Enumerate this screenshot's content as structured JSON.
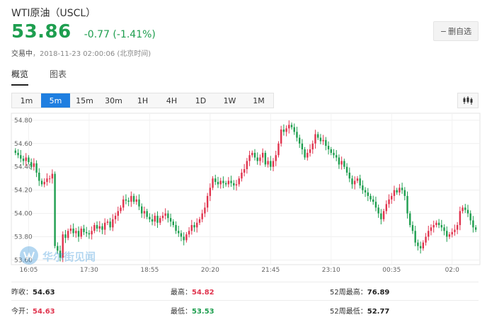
{
  "header": {
    "title": "WTI原油（USCL）",
    "price": "53.86",
    "change": "-0.77 (-1.41%)",
    "status_label": "交易中",
    "timestamp": "，2018-11-23 02:00:06 (北京时间)",
    "fav_button": "删自选",
    "up_color": "#e0344e",
    "down_color": "#1e9e4f"
  },
  "tabs": [
    {
      "label": "概览",
      "active": true
    },
    {
      "label": "图表",
      "active": false
    }
  ],
  "periods": [
    {
      "label": "1m",
      "active": false
    },
    {
      "label": "5m",
      "active": true
    },
    {
      "label": "15m",
      "active": false
    },
    {
      "label": "30m",
      "active": false
    },
    {
      "label": "1H",
      "active": false
    },
    {
      "label": "4H",
      "active": false
    },
    {
      "label": "1D",
      "active": false
    },
    {
      "label": "1W",
      "active": false
    },
    {
      "label": "1M",
      "active": false
    }
  ],
  "chart_tool_icon": "candlestick-icon",
  "watermark": "华尔街见闻",
  "chart_data": {
    "type": "candlestick",
    "y_ticks": [
      "54.80",
      "54.60",
      "54.40",
      "54.20",
      "54.00",
      "53.80",
      "53.60"
    ],
    "ylim": [
      53.56,
      54.86
    ],
    "x_ticks": [
      "16:05",
      "17:30",
      "18:55",
      "20:20",
      "21:45",
      "23:10",
      "00:35",
      "02:0"
    ],
    "x_tick_index": [
      5,
      28,
      51,
      74,
      97,
      120,
      143,
      166
    ],
    "grid": true,
    "closes": [
      54.52,
      54.5,
      54.47,
      54.45,
      54.48,
      54.44,
      54.4,
      54.43,
      54.35,
      54.28,
      54.25,
      54.27,
      54.3,
      54.3,
      54.34,
      53.72,
      53.68,
      53.62,
      53.82,
      53.79,
      53.85,
      53.87,
      53.83,
      53.85,
      53.8,
      53.87,
      53.84,
      53.83,
      53.82,
      53.85,
      53.9,
      53.87,
      53.89,
      53.86,
      53.92,
      53.93,
      53.88,
      53.95,
      53.98,
      54.02,
      54.05,
      54.12,
      54.11,
      54.1,
      54.15,
      54.1,
      54.12,
      54.06,
      54.0,
      54.02,
      53.97,
      53.95,
      53.93,
      53.98,
      53.92,
      53.96,
      53.98,
      54.0,
      53.96,
      53.93,
      53.9,
      53.85,
      53.83,
      53.8,
      53.77,
      53.82,
      53.85,
      53.9,
      53.88,
      53.92,
      53.95,
      54.0,
      54.05,
      54.15,
      54.22,
      54.3,
      54.27,
      54.25,
      54.28,
      54.26,
      54.25,
      54.28,
      54.26,
      54.24,
      54.25,
      54.3,
      54.35,
      54.38,
      54.45,
      54.5,
      54.52,
      54.48,
      54.45,
      54.48,
      54.52,
      54.42,
      54.45,
      54.4,
      54.45,
      54.5,
      54.6,
      54.72,
      54.7,
      54.73,
      54.76,
      54.74,
      54.7,
      54.65,
      54.6,
      54.55,
      54.48,
      54.52,
      54.55,
      54.6,
      54.68,
      54.65,
      54.62,
      54.63,
      54.58,
      54.55,
      54.52,
      54.5,
      54.48,
      54.42,
      54.45,
      54.4,
      54.35,
      54.3,
      54.25,
      54.28,
      54.3,
      54.24,
      54.2,
      54.18,
      54.15,
      54.12,
      54.1,
      54.05,
      54.0,
      53.95,
      54.02,
      54.08,
      54.12,
      54.15,
      54.2,
      54.18,
      54.22,
      54.2,
      54.15,
      54.0,
      53.9,
      53.85,
      53.75,
      53.72,
      53.7,
      53.75,
      53.8,
      53.85,
      53.88,
      53.9,
      53.92,
      53.9,
      53.88,
      53.85,
      53.8,
      53.82,
      53.84,
      53.86,
      53.9,
      54.02,
      54.05,
      54.03,
      54.0,
      53.94,
      53.88,
      53.86
    ]
  },
  "stats": [
    {
      "label": "昨收：",
      "value": "54.63",
      "tone": "plain"
    },
    {
      "label": "最高：",
      "value": "54.82",
      "tone": "red"
    },
    {
      "label": "52周最高：",
      "value": "76.89",
      "tone": "plain"
    },
    {
      "label": "今开：",
      "value": "54.63",
      "tone": "red"
    },
    {
      "label": "最低：",
      "value": "53.53",
      "tone": "green"
    },
    {
      "label": "52周最低：",
      "value": "52.77",
      "tone": "plain"
    }
  ]
}
